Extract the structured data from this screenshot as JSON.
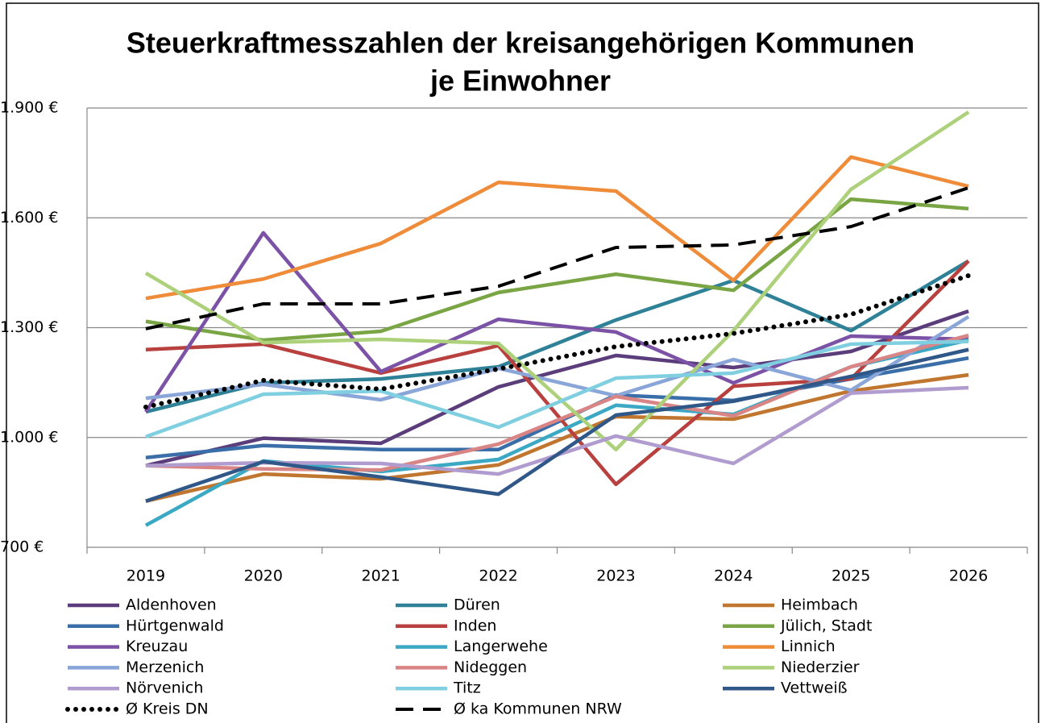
{
  "chart_data": {
    "type": "line",
    "title": [
      "Steuerkraftmesszahlen der kreisangehörigen Kommunen",
      "je Einwohner"
    ],
    "categories": [
      "2019",
      "2020",
      "2021",
      "2022",
      "2023",
      "2024",
      "2025",
      "2026"
    ],
    "ylim": [
      700,
      1900
    ],
    "yticks": [
      {
        "value": 700,
        "label": "700 €"
      },
      {
        "value": 1000,
        "label": "1.000 €"
      },
      {
        "value": 1300,
        "label": "1.300 €"
      },
      {
        "value": 1600,
        "label": "1.600 €"
      },
      {
        "value": 1900,
        "label": "1.900 €"
      }
    ],
    "grid": true,
    "legend": "bottom",
    "series": [
      {
        "name": "Aldenhoven",
        "color": "#5a3d7a",
        "values": [
          923,
          998,
          984,
          1138,
          1224,
          1191,
          1235,
          1345
        ]
      },
      {
        "name": "Düren",
        "color": "#2e8196",
        "values": [
          1070,
          1149,
          1160,
          1193,
          1321,
          1429,
          1292,
          1482
        ]
      },
      {
        "name": "Heimbach",
        "color": "#c0762f",
        "values": [
          826,
          900,
          887,
          925,
          1057,
          1050,
          1127,
          1171
        ]
      },
      {
        "name": "Hürtgenwald",
        "color": "#3a6ea8",
        "values": [
          945,
          978,
          967,
          967,
          1116,
          1101,
          1160,
          1217
        ]
      },
      {
        "name": "Inden",
        "color": "#b8403e",
        "values": [
          1240,
          1255,
          1176,
          1251,
          872,
          1140,
          1160,
          1482
        ]
      },
      {
        "name": "Jülich, Stadt",
        "color": "#7aa544",
        "values": [
          1317,
          1266,
          1290,
          1396,
          1446,
          1402,
          1651,
          1625
        ]
      },
      {
        "name": "Kreuzau",
        "color": "#7b52a6",
        "values": [
          1070,
          1559,
          1180,
          1323,
          1288,
          1149,
          1277,
          1268
        ]
      },
      {
        "name": "Langerwehe",
        "color": "#3ba8c4",
        "values": [
          760,
          936,
          907,
          940,
          1088,
          1063,
          1193,
          1266
        ]
      },
      {
        "name": "Linnich",
        "color": "#ef8c3a",
        "values": [
          1380,
          1433,
          1530,
          1697,
          1673,
          1429,
          1766,
          1686
        ]
      },
      {
        "name": "Merzenich",
        "color": "#8aa5d8",
        "values": [
          1107,
          1145,
          1103,
          1189,
          1114,
          1213,
          1129,
          1330
        ]
      },
      {
        "name": "Nideggen",
        "color": "#d98585",
        "values": [
          923,
          914,
          911,
          982,
          1112,
          1059,
          1193,
          1279
        ]
      },
      {
        "name": "Niederzier",
        "color": "#add07a",
        "values": [
          1449,
          1259,
          1268,
          1257,
          967,
          1292,
          1678,
          1889
        ]
      },
      {
        "name": "Nörvenich",
        "color": "#b19cd0",
        "values": [
          923,
          931,
          929,
          900,
          1004,
          929,
          1121,
          1136
        ]
      },
      {
        "name": "Titz",
        "color": "#7fcfe0",
        "values": [
          1002,
          1118,
          1127,
          1028,
          1162,
          1176,
          1255,
          1262
        ]
      },
      {
        "name": "Vettweiß",
        "color": "#2f5788",
        "values": [
          826,
          934,
          892,
          845,
          1061,
          1099,
          1167,
          1240
        ]
      },
      {
        "name": "Ø  Kreis DN",
        "color": "#000000",
        "dash": "dotted",
        "values": [
          1083,
          1156,
          1132,
          1187,
          1248,
          1284,
          1336,
          1442
        ]
      },
      {
        "name": "Ø  ka Kommunen NRW",
        "color": "#000000",
        "dash": "dashed",
        "values": [
          1297,
          1365,
          1365,
          1413,
          1519,
          1526,
          1576,
          1682
        ]
      }
    ]
  }
}
